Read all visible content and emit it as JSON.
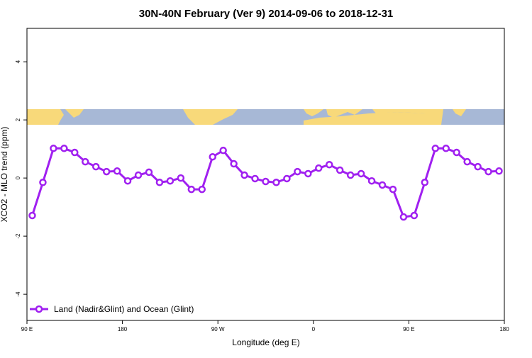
{
  "chart_data": {
    "type": "line",
    "title": "30N-40N February (Ver 9)   2014-09-06 to 2018-12-31",
    "xlabel": "Longitude (deg E)",
    "ylabel": "XCO2 - MLO trend (ppm)",
    "x": [
      95,
      105,
      115,
      125,
      135,
      145,
      155,
      165,
      175,
      185,
      195,
      205,
      215,
      225,
      235,
      245,
      255,
      265,
      275,
      285,
      295,
      305,
      315,
      325,
      335,
      345,
      355,
      365,
      375,
      385,
      395,
      405,
      415,
      425,
      435,
      445,
      455,
      465,
      475,
      485,
      495,
      505,
      515,
      525,
      535
    ],
    "series": [
      {
        "name": "Land (Nadir&Glint) and Ocean (Glint)",
        "color": "#a020f0",
        "values": [
          -1.29,
          -0.15,
          1.02,
          1.02,
          0.88,
          0.56,
          0.39,
          0.22,
          0.24,
          -0.1,
          0.1,
          0.2,
          -0.15,
          -0.1,
          0.0,
          -0.39,
          -0.39,
          0.73,
          0.95,
          0.49,
          0.1,
          -0.02,
          -0.12,
          -0.15,
          -0.02,
          0.22,
          0.15,
          0.34,
          0.46,
          0.27,
          0.1,
          0.15,
          -0.1,
          -0.24,
          -0.39,
          -1.34,
          -1.29,
          -0.15,
          1.02,
          1.02,
          0.88,
          0.56,
          0.39,
          0.22,
          0.24
        ]
      }
    ],
    "xlim": [
      90,
      540
    ],
    "xticks": [
      {
        "value": 90,
        "label": "90 E"
      },
      {
        "value": 180,
        "label": "180"
      },
      {
        "value": 270,
        "label": "90 W"
      },
      {
        "value": 360,
        "label": "0"
      },
      {
        "value": 450,
        "label": "90 E"
      },
      {
        "value": 540,
        "label": "180"
      }
    ],
    "ylim": [
      -4.9,
      5.15
    ],
    "yticks": [
      -4,
      -2,
      0,
      2,
      4
    ],
    "legend": "bottom-left"
  }
}
